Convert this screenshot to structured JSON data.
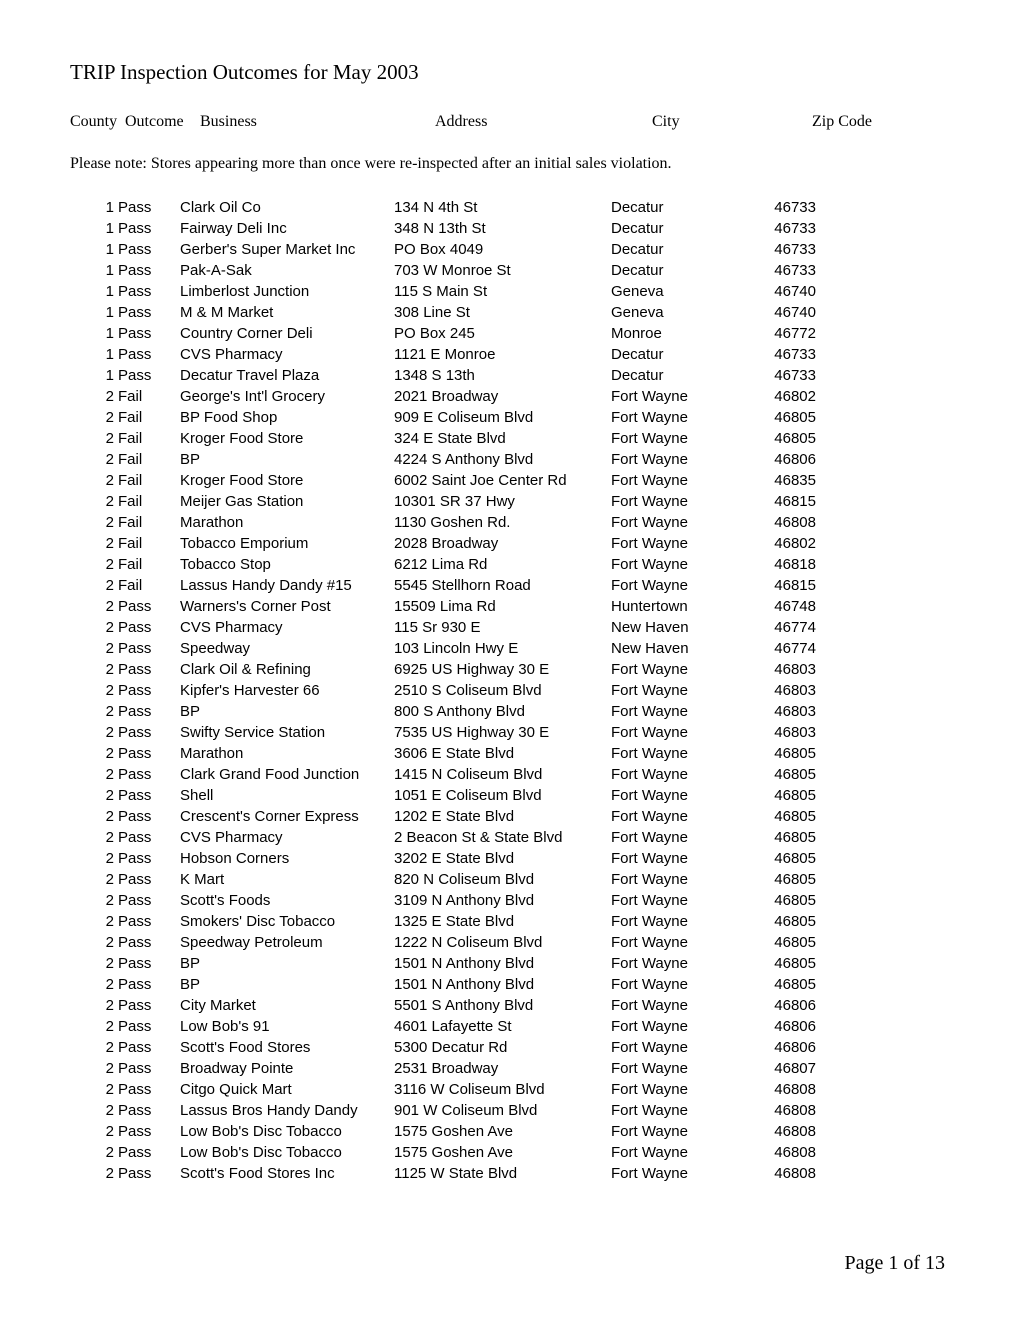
{
  "title": "TRIP Inspection Outcomes for May 2003",
  "headers": {
    "county": "County",
    "outcome": "Outcome",
    "business": "Business",
    "address": "Address",
    "city": "City",
    "zip": "Zip Code"
  },
  "note": "Please note:  Stores appearing more than once were re-inspected after an initial sales violation.",
  "footer": "Page 1 of 13",
  "rows": [
    {
      "county": "1",
      "outcome": "Pass",
      "business": "Clark Oil Co",
      "address": "134 N 4th St",
      "city": "Decatur",
      "zip": "46733"
    },
    {
      "county": "1",
      "outcome": "Pass",
      "business": "Fairway Deli Inc",
      "address": "348 N 13th St",
      "city": "Decatur",
      "zip": "46733"
    },
    {
      "county": "1",
      "outcome": "Pass",
      "business": "Gerber's Super Market Inc",
      "address": "PO Box 4049",
      "city": "Decatur",
      "zip": "46733"
    },
    {
      "county": "1",
      "outcome": "Pass",
      "business": "Pak-A-Sak",
      "address": "703 W Monroe St",
      "city": "Decatur",
      "zip": "46733"
    },
    {
      "county": "1",
      "outcome": "Pass",
      "business": "Limberlost Junction",
      "address": "115 S Main St",
      "city": "Geneva",
      "zip": "46740"
    },
    {
      "county": "1",
      "outcome": "Pass",
      "business": "M & M Market",
      "address": "308 Line St",
      "city": "Geneva",
      "zip": "46740"
    },
    {
      "county": "1",
      "outcome": "Pass",
      "business": "Country Corner Deli",
      "address": "PO Box 245",
      "city": "Monroe",
      "zip": "46772"
    },
    {
      "county": "1",
      "outcome": "Pass",
      "business": "CVS Pharmacy",
      "address": "1121 E Monroe",
      "city": "Decatur",
      "zip": "46733"
    },
    {
      "county": "1",
      "outcome": "Pass",
      "business": "Decatur Travel Plaza",
      "address": "1348 S 13th",
      "city": "Decatur",
      "zip": "46733"
    },
    {
      "county": "2",
      "outcome": "Fail",
      "business": "George's Int'l Grocery",
      "address": "2021 Broadway",
      "city": "Fort Wayne",
      "zip": "46802"
    },
    {
      "county": "2",
      "outcome": "Fail",
      "business": "BP Food Shop",
      "address": "909 E Coliseum Blvd",
      "city": "Fort Wayne",
      "zip": "46805"
    },
    {
      "county": "2",
      "outcome": "Fail",
      "business": "Kroger Food Store",
      "address": "324 E State Blvd",
      "city": "Fort Wayne",
      "zip": "46805"
    },
    {
      "county": "2",
      "outcome": "Fail",
      "business": "BP",
      "address": "4224 S Anthony Blvd",
      "city": "Fort Wayne",
      "zip": "46806"
    },
    {
      "county": "2",
      "outcome": "Fail",
      "business": "Kroger Food Store",
      "address": "6002 Saint Joe Center Rd",
      "city": "Fort Wayne",
      "zip": "46835"
    },
    {
      "county": "2",
      "outcome": "Fail",
      "business": "Meijer Gas Station",
      "address": "10301 SR 37 Hwy",
      "city": "Fort Wayne",
      "zip": "46815"
    },
    {
      "county": "2",
      "outcome": "Fail",
      "business": "Marathon",
      "address": "1130 Goshen Rd.",
      "city": "Fort Wayne",
      "zip": "46808"
    },
    {
      "county": "2",
      "outcome": "Fail",
      "business": "Tobacco Emporium",
      "address": "2028 Broadway",
      "city": "Fort Wayne",
      "zip": "46802"
    },
    {
      "county": "2",
      "outcome": "Fail",
      "business": "Tobacco Stop",
      "address": "6212 Lima Rd",
      "city": "Fort Wayne",
      "zip": "46818"
    },
    {
      "county": "2",
      "outcome": "Fail",
      "business": "Lassus Handy Dandy #15",
      "address": "5545 Stellhorn Road",
      "city": "Fort Wayne",
      "zip": "46815"
    },
    {
      "county": "2",
      "outcome": "Pass",
      "business": "Warners's Corner Post",
      "address": "15509 Lima Rd",
      "city": "Huntertown",
      "zip": "46748"
    },
    {
      "county": "2",
      "outcome": "Pass",
      "business": "CVS Pharmacy",
      "address": "115 Sr 930 E",
      "city": "New Haven",
      "zip": "46774"
    },
    {
      "county": "2",
      "outcome": "Pass",
      "business": "Speedway",
      "address": "103 Lincoln Hwy E",
      "city": "New Haven",
      "zip": "46774"
    },
    {
      "county": "2",
      "outcome": "Pass",
      "business": "Clark Oil & Refining",
      "address": "6925 US Highway 30 E",
      "city": "Fort Wayne",
      "zip": "46803"
    },
    {
      "county": "2",
      "outcome": "Pass",
      "business": "Kipfer's Harvester 66",
      "address": "2510 S Coliseum Blvd",
      "city": "Fort Wayne",
      "zip": "46803"
    },
    {
      "county": "2",
      "outcome": "Pass",
      "business": "BP",
      "address": "800 S Anthony Blvd",
      "city": "Fort Wayne",
      "zip": "46803"
    },
    {
      "county": "2",
      "outcome": "Pass",
      "business": "Swifty Service Station",
      "address": "7535 US Highway 30 E",
      "city": "Fort Wayne",
      "zip": "46803"
    },
    {
      "county": "2",
      "outcome": "Pass",
      "business": "Marathon",
      "address": "3606 E State Blvd",
      "city": "Fort Wayne",
      "zip": "46805"
    },
    {
      "county": "2",
      "outcome": "Pass",
      "business": "Clark Grand Food Junction",
      "address": "1415 N Coliseum Blvd",
      "city": "Fort Wayne",
      "zip": "46805"
    },
    {
      "county": "2",
      "outcome": "Pass",
      "business": "Shell",
      "address": "1051 E Coliseum Blvd",
      "city": "Fort Wayne",
      "zip": "46805"
    },
    {
      "county": "2",
      "outcome": "Pass",
      "business": "Crescent's Corner Express",
      "address": "1202 E State Blvd",
      "city": "Fort Wayne",
      "zip": "46805"
    },
    {
      "county": "2",
      "outcome": "Pass",
      "business": "CVS Pharmacy",
      "address": "2 Beacon St & State Blvd",
      "city": "Fort Wayne",
      "zip": "46805"
    },
    {
      "county": "2",
      "outcome": "Pass",
      "business": "Hobson Corners",
      "address": "3202 E State Blvd",
      "city": "Fort Wayne",
      "zip": "46805"
    },
    {
      "county": "2",
      "outcome": "Pass",
      "business": "K Mart",
      "address": "820 N Coliseum Blvd",
      "city": "Fort Wayne",
      "zip": "46805"
    },
    {
      "county": "2",
      "outcome": "Pass",
      "business": "Scott's Foods",
      "address": "3109 N Anthony Blvd",
      "city": "Fort Wayne",
      "zip": "46805"
    },
    {
      "county": "2",
      "outcome": "Pass",
      "business": "Smokers' Disc Tobacco",
      "address": "1325 E State Blvd",
      "city": "Fort Wayne",
      "zip": "46805"
    },
    {
      "county": "2",
      "outcome": "Pass",
      "business": "Speedway Petroleum",
      "address": "1222 N Coliseum Blvd",
      "city": "Fort Wayne",
      "zip": "46805"
    },
    {
      "county": "2",
      "outcome": "Pass",
      "business": "BP",
      "address": "1501 N Anthony Blvd",
      "city": "Fort Wayne",
      "zip": "46805"
    },
    {
      "county": "2",
      "outcome": "Pass",
      "business": "BP",
      "address": "1501 N Anthony Blvd",
      "city": "Fort Wayne",
      "zip": "46805"
    },
    {
      "county": "2",
      "outcome": "Pass",
      "business": "City Market",
      "address": "5501 S Anthony Blvd",
      "city": "Fort Wayne",
      "zip": "46806"
    },
    {
      "county": "2",
      "outcome": "Pass",
      "business": "Low Bob's 91",
      "address": "4601 Lafayette St",
      "city": "Fort Wayne",
      "zip": "46806"
    },
    {
      "county": "2",
      "outcome": "Pass",
      "business": "Scott's Food Stores",
      "address": "5300 Decatur Rd",
      "city": "Fort Wayne",
      "zip": "46806"
    },
    {
      "county": "2",
      "outcome": "Pass",
      "business": "Broadway Pointe",
      "address": "2531 Broadway",
      "city": "Fort Wayne",
      "zip": "46807"
    },
    {
      "county": "2",
      "outcome": "Pass",
      "business": "Citgo Quick Mart",
      "address": "3116 W Coliseum Blvd",
      "city": "Fort Wayne",
      "zip": "46808"
    },
    {
      "county": "2",
      "outcome": "Pass",
      "business": "Lassus Bros Handy Dandy",
      "address": "901 W Coliseum Blvd",
      "city": "Fort Wayne",
      "zip": "46808"
    },
    {
      "county": "2",
      "outcome": "Pass",
      "business": "Low Bob's Disc Tobacco",
      "address": "1575 Goshen Ave",
      "city": "Fort Wayne",
      "zip": "46808"
    },
    {
      "county": "2",
      "outcome": "Pass",
      "business": "Low Bob's Disc Tobacco",
      "address": "1575 Goshen Ave",
      "city": "Fort Wayne",
      "zip": "46808"
    },
    {
      "county": "2",
      "outcome": "Pass",
      "business": "Scott's Food Stores Inc",
      "address": "1125 W State Blvd",
      "city": "Fort Wayne",
      "zip": "46808"
    }
  ]
}
